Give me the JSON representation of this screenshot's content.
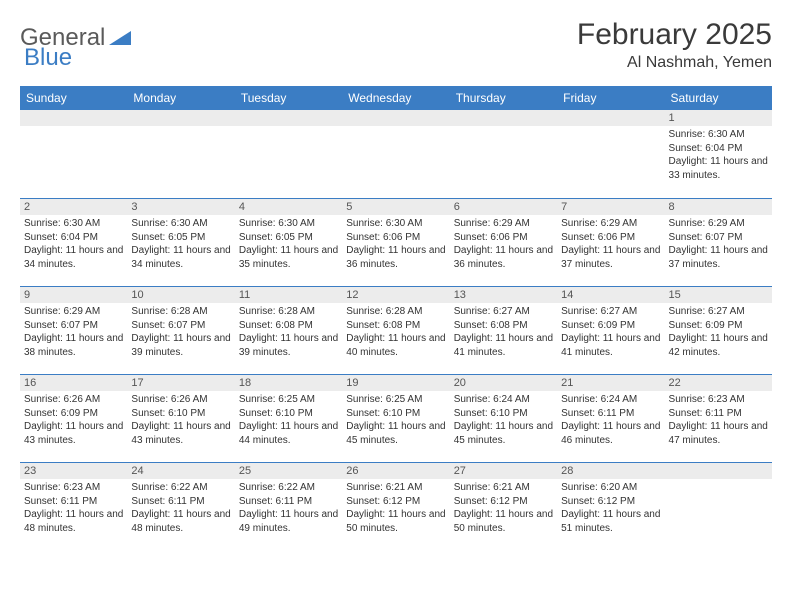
{
  "brand": {
    "part1": "General",
    "part2": "Blue"
  },
  "title": "February 2025",
  "location": "Al Nashmah, Yemen",
  "colors": {
    "header_bg": "#3b7dc4",
    "header_text": "#ffffff",
    "border": "#3b7dc4",
    "daynum_bg": "#ececec",
    "text": "#333333"
  },
  "weekdays": [
    "Sunday",
    "Monday",
    "Tuesday",
    "Wednesday",
    "Thursday",
    "Friday",
    "Saturday"
  ],
  "weeks": [
    [
      {
        "n": "",
        "sunrise": "",
        "sunset": "",
        "daylight": ""
      },
      {
        "n": "",
        "sunrise": "",
        "sunset": "",
        "daylight": ""
      },
      {
        "n": "",
        "sunrise": "",
        "sunset": "",
        "daylight": ""
      },
      {
        "n": "",
        "sunrise": "",
        "sunset": "",
        "daylight": ""
      },
      {
        "n": "",
        "sunrise": "",
        "sunset": "",
        "daylight": ""
      },
      {
        "n": "",
        "sunrise": "",
        "sunset": "",
        "daylight": ""
      },
      {
        "n": "1",
        "sunrise": "Sunrise: 6:30 AM",
        "sunset": "Sunset: 6:04 PM",
        "daylight": "Daylight: 11 hours and 33 minutes."
      }
    ],
    [
      {
        "n": "2",
        "sunrise": "Sunrise: 6:30 AM",
        "sunset": "Sunset: 6:04 PM",
        "daylight": "Daylight: 11 hours and 34 minutes."
      },
      {
        "n": "3",
        "sunrise": "Sunrise: 6:30 AM",
        "sunset": "Sunset: 6:05 PM",
        "daylight": "Daylight: 11 hours and 34 minutes."
      },
      {
        "n": "4",
        "sunrise": "Sunrise: 6:30 AM",
        "sunset": "Sunset: 6:05 PM",
        "daylight": "Daylight: 11 hours and 35 minutes."
      },
      {
        "n": "5",
        "sunrise": "Sunrise: 6:30 AM",
        "sunset": "Sunset: 6:06 PM",
        "daylight": "Daylight: 11 hours and 36 minutes."
      },
      {
        "n": "6",
        "sunrise": "Sunrise: 6:29 AM",
        "sunset": "Sunset: 6:06 PM",
        "daylight": "Daylight: 11 hours and 36 minutes."
      },
      {
        "n": "7",
        "sunrise": "Sunrise: 6:29 AM",
        "sunset": "Sunset: 6:06 PM",
        "daylight": "Daylight: 11 hours and 37 minutes."
      },
      {
        "n": "8",
        "sunrise": "Sunrise: 6:29 AM",
        "sunset": "Sunset: 6:07 PM",
        "daylight": "Daylight: 11 hours and 37 minutes."
      }
    ],
    [
      {
        "n": "9",
        "sunrise": "Sunrise: 6:29 AM",
        "sunset": "Sunset: 6:07 PM",
        "daylight": "Daylight: 11 hours and 38 minutes."
      },
      {
        "n": "10",
        "sunrise": "Sunrise: 6:28 AM",
        "sunset": "Sunset: 6:07 PM",
        "daylight": "Daylight: 11 hours and 39 minutes."
      },
      {
        "n": "11",
        "sunrise": "Sunrise: 6:28 AM",
        "sunset": "Sunset: 6:08 PM",
        "daylight": "Daylight: 11 hours and 39 minutes."
      },
      {
        "n": "12",
        "sunrise": "Sunrise: 6:28 AM",
        "sunset": "Sunset: 6:08 PM",
        "daylight": "Daylight: 11 hours and 40 minutes."
      },
      {
        "n": "13",
        "sunrise": "Sunrise: 6:27 AM",
        "sunset": "Sunset: 6:08 PM",
        "daylight": "Daylight: 11 hours and 41 minutes."
      },
      {
        "n": "14",
        "sunrise": "Sunrise: 6:27 AM",
        "sunset": "Sunset: 6:09 PM",
        "daylight": "Daylight: 11 hours and 41 minutes."
      },
      {
        "n": "15",
        "sunrise": "Sunrise: 6:27 AM",
        "sunset": "Sunset: 6:09 PM",
        "daylight": "Daylight: 11 hours and 42 minutes."
      }
    ],
    [
      {
        "n": "16",
        "sunrise": "Sunrise: 6:26 AM",
        "sunset": "Sunset: 6:09 PM",
        "daylight": "Daylight: 11 hours and 43 minutes."
      },
      {
        "n": "17",
        "sunrise": "Sunrise: 6:26 AM",
        "sunset": "Sunset: 6:10 PM",
        "daylight": "Daylight: 11 hours and 43 minutes."
      },
      {
        "n": "18",
        "sunrise": "Sunrise: 6:25 AM",
        "sunset": "Sunset: 6:10 PM",
        "daylight": "Daylight: 11 hours and 44 minutes."
      },
      {
        "n": "19",
        "sunrise": "Sunrise: 6:25 AM",
        "sunset": "Sunset: 6:10 PM",
        "daylight": "Daylight: 11 hours and 45 minutes."
      },
      {
        "n": "20",
        "sunrise": "Sunrise: 6:24 AM",
        "sunset": "Sunset: 6:10 PM",
        "daylight": "Daylight: 11 hours and 45 minutes."
      },
      {
        "n": "21",
        "sunrise": "Sunrise: 6:24 AM",
        "sunset": "Sunset: 6:11 PM",
        "daylight": "Daylight: 11 hours and 46 minutes."
      },
      {
        "n": "22",
        "sunrise": "Sunrise: 6:23 AM",
        "sunset": "Sunset: 6:11 PM",
        "daylight": "Daylight: 11 hours and 47 minutes."
      }
    ],
    [
      {
        "n": "23",
        "sunrise": "Sunrise: 6:23 AM",
        "sunset": "Sunset: 6:11 PM",
        "daylight": "Daylight: 11 hours and 48 minutes."
      },
      {
        "n": "24",
        "sunrise": "Sunrise: 6:22 AM",
        "sunset": "Sunset: 6:11 PM",
        "daylight": "Daylight: 11 hours and 48 minutes."
      },
      {
        "n": "25",
        "sunrise": "Sunrise: 6:22 AM",
        "sunset": "Sunset: 6:11 PM",
        "daylight": "Daylight: 11 hours and 49 minutes."
      },
      {
        "n": "26",
        "sunrise": "Sunrise: 6:21 AM",
        "sunset": "Sunset: 6:12 PM",
        "daylight": "Daylight: 11 hours and 50 minutes."
      },
      {
        "n": "27",
        "sunrise": "Sunrise: 6:21 AM",
        "sunset": "Sunset: 6:12 PM",
        "daylight": "Daylight: 11 hours and 50 minutes."
      },
      {
        "n": "28",
        "sunrise": "Sunrise: 6:20 AM",
        "sunset": "Sunset: 6:12 PM",
        "daylight": "Daylight: 11 hours and 51 minutes."
      },
      {
        "n": "",
        "sunrise": "",
        "sunset": "",
        "daylight": ""
      }
    ]
  ]
}
